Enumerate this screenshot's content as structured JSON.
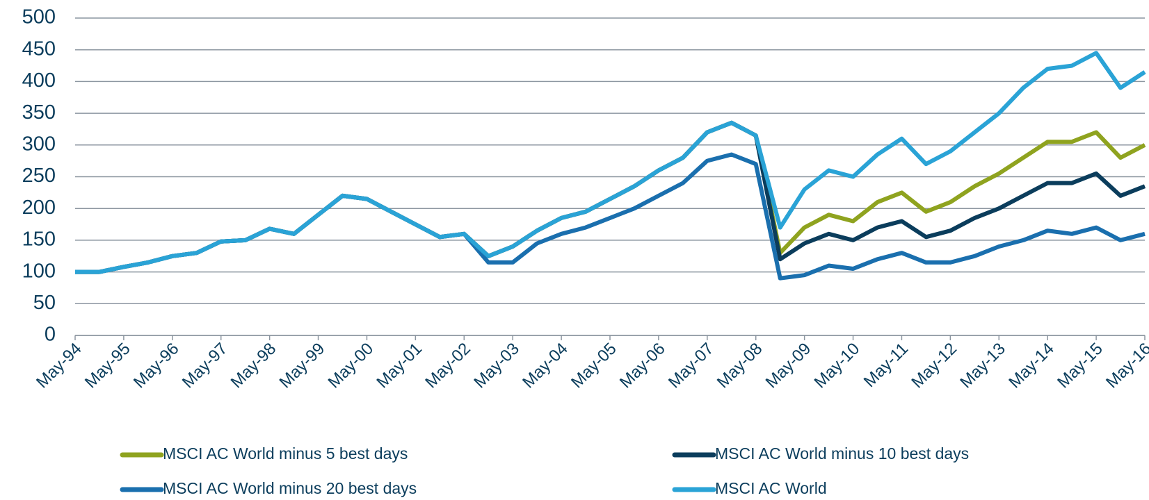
{
  "chart_data": {
    "type": "line",
    "x": [
      "1994-05",
      "1994-11",
      "1995-05",
      "1995-11",
      "1996-05",
      "1996-11",
      "1997-05",
      "1997-11",
      "1998-05",
      "1998-11",
      "1999-05",
      "1999-11",
      "2000-05",
      "2000-11",
      "2001-05",
      "2001-11",
      "2002-05",
      "2002-11",
      "2003-05",
      "2003-11",
      "2004-05",
      "2004-11",
      "2005-05",
      "2005-11",
      "2006-05",
      "2006-11",
      "2007-05",
      "2007-11",
      "2008-05",
      "2008-11",
      "2009-05",
      "2009-11",
      "2010-05",
      "2010-11",
      "2011-05",
      "2011-11",
      "2012-05",
      "2012-11",
      "2013-05",
      "2013-11",
      "2014-05",
      "2014-11",
      "2015-05",
      "2015-11",
      "2016-05"
    ],
    "series": [
      {
        "name": "MSCI AC World minus 5 best days",
        "color": "#8fa31f",
        "values": [
          100,
          100,
          108,
          115,
          125,
          130,
          148,
          150,
          168,
          160,
          190,
          220,
          215,
          195,
          175,
          155,
          160,
          125,
          140,
          165,
          185,
          195,
          215,
          235,
          260,
          280,
          320,
          335,
          315,
          130,
          170,
          190,
          180,
          210,
          225,
          195,
          210,
          235,
          255,
          280,
          305,
          305,
          320,
          280,
          300
        ]
      },
      {
        "name": "MSCI AC World minus 10 best days",
        "color": "#0b3d5c",
        "values": [
          100,
          100,
          108,
          115,
          125,
          130,
          148,
          150,
          168,
          160,
          190,
          220,
          215,
          195,
          175,
          155,
          160,
          125,
          140,
          165,
          185,
          195,
          215,
          235,
          260,
          280,
          320,
          335,
          315,
          120,
          145,
          160,
          150,
          170,
          180,
          155,
          165,
          185,
          200,
          220,
          240,
          240,
          255,
          220,
          235
        ]
      },
      {
        "name": "MSCI AC World minus 20 best days",
        "color": "#1a6fae",
        "values": [
          100,
          100,
          108,
          115,
          125,
          130,
          148,
          150,
          168,
          160,
          190,
          220,
          215,
          195,
          175,
          155,
          160,
          115,
          115,
          145,
          160,
          170,
          185,
          200,
          220,
          240,
          275,
          285,
          270,
          90,
          95,
          110,
          105,
          120,
          130,
          115,
          115,
          125,
          140,
          150,
          165,
          160,
          170,
          150,
          160
        ]
      },
      {
        "name": "MSCI AC World",
        "color": "#2aa3d6",
        "values": [
          100,
          100,
          108,
          115,
          125,
          130,
          148,
          150,
          168,
          160,
          190,
          220,
          215,
          195,
          175,
          155,
          160,
          125,
          140,
          165,
          185,
          195,
          215,
          235,
          260,
          280,
          320,
          335,
          315,
          170,
          230,
          260,
          250,
          285,
          310,
          270,
          290,
          320,
          350,
          390,
          420,
          425,
          445,
          390,
          415
        ]
      }
    ],
    "xlim": [
      "1994-05",
      "2016-05"
    ],
    "xticks": [
      {
        "value": "1994-05",
        "label": "May-94"
      },
      {
        "value": "1995-05",
        "label": "May-95"
      },
      {
        "value": "1996-05",
        "label": "May-96"
      },
      {
        "value": "1997-05",
        "label": "May-97"
      },
      {
        "value": "1998-05",
        "label": "May-98"
      },
      {
        "value": "1999-05",
        "label": "May-99"
      },
      {
        "value": "2000-05",
        "label": "May-00"
      },
      {
        "value": "2001-05",
        "label": "May-01"
      },
      {
        "value": "2002-05",
        "label": "May-02"
      },
      {
        "value": "2003-05",
        "label": "May-03"
      },
      {
        "value": "2004-05",
        "label": "May-04"
      },
      {
        "value": "2005-05",
        "label": "May-05"
      },
      {
        "value": "2006-05",
        "label": "May-06"
      },
      {
        "value": "2007-05",
        "label": "May-07"
      },
      {
        "value": "2008-05",
        "label": "May-08"
      },
      {
        "value": "2009-05",
        "label": "May-09"
      },
      {
        "value": "2010-05",
        "label": "May-10"
      },
      {
        "value": "2011-05",
        "label": "May-11"
      },
      {
        "value": "2012-05",
        "label": "May-12"
      },
      {
        "value": "2013-05",
        "label": "May-13"
      },
      {
        "value": "2014-05",
        "label": "May-14"
      },
      {
        "value": "2015-05",
        "label": "May-15"
      },
      {
        "value": "2016-05",
        "label": "May-16"
      }
    ],
    "ylim": [
      0,
      500
    ],
    "yticks": [
      0,
      50,
      100,
      150,
      200,
      250,
      300,
      350,
      400,
      450,
      500
    ],
    "grid": true
  }
}
